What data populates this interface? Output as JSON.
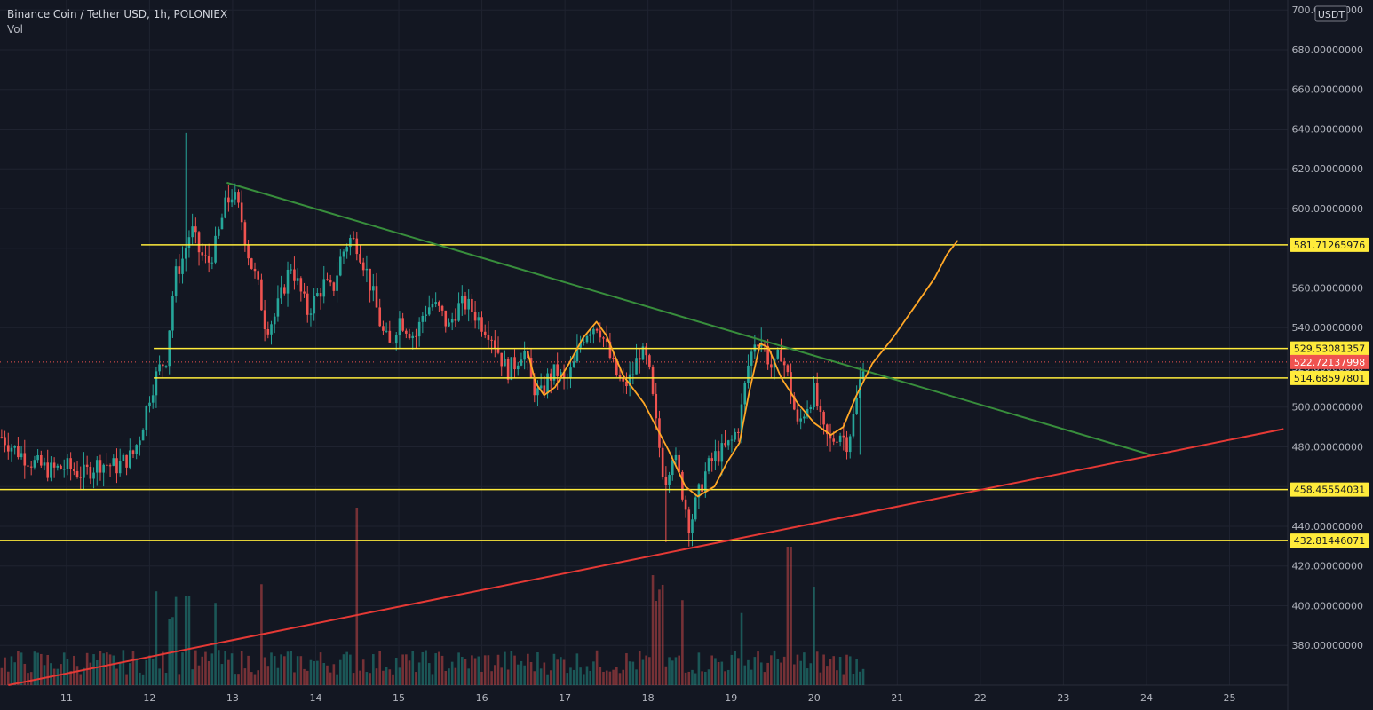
{
  "header": {
    "title": "Binance Coin / Tether USD, 1h, POLONIEX",
    "indicator": "Vol",
    "currency": "USDT"
  },
  "colors": {
    "background": "#131722",
    "grid": "#1f2330",
    "up": "#26a69a",
    "down": "#ef5350",
    "level": "#ffeb3b",
    "falling_trendline": "#388e3c",
    "rising_trendline": "#e53935",
    "projection": "#ffa726",
    "current_price": "#ef5350"
  },
  "chart_data": {
    "type": "candlestick",
    "ylim": [
      360,
      705
    ],
    "xlim": [
      10.2,
      25.7
    ],
    "y_ticks": [
      "380.00000000",
      "400.00000000",
      "420.00000000",
      "440.00000000",
      "460.00000000",
      "480.00000000",
      "500.00000000",
      "520.00000000",
      "540.00000000",
      "560.00000000",
      "580.00000000",
      "600.00000000",
      "620.00000000",
      "640.00000000",
      "660.00000000",
      "680.00000000",
      "700.00000000"
    ],
    "x_ticks": [
      "11",
      "12",
      "13",
      "14",
      "15",
      "16",
      "17",
      "18",
      "19",
      "20",
      "21",
      "22",
      "23",
      "24",
      "25"
    ],
    "grid": true,
    "horizontal_levels": [
      {
        "label": "581.71265976",
        "value": 581.71,
        "x_start": 11.9
      },
      {
        "label": "529.53081357",
        "value": 529.53,
        "x_start": 12.05
      },
      {
        "label": "514.68597801",
        "value": 514.69,
        "x_start": 12.05
      },
      {
        "label": "458.45554031",
        "value": 458.46,
        "x_start": 10.2
      },
      {
        "label": "432.81446071",
        "value": 432.81,
        "x_start": 10.2
      }
    ],
    "current_price": {
      "label": "522.72137998",
      "value": 522.72
    },
    "trendlines": [
      {
        "name": "falling",
        "points": [
          [
            12.93,
            613
          ],
          [
            24.05,
            476
          ]
        ]
      },
      {
        "name": "rising",
        "points": [
          [
            10.3,
            360
          ],
          [
            25.65,
            489
          ]
        ]
      }
    ],
    "projection_path": [
      [
        17.65,
        520
      ],
      [
        16.55,
        528
      ],
      [
        16.65,
        512
      ],
      [
        16.75,
        506
      ],
      [
        16.88,
        510
      ],
      [
        17.05,
        522
      ],
      [
        17.22,
        535
      ],
      [
        17.38,
        543
      ],
      [
        17.5,
        536
      ],
      [
        17.7,
        516
      ],
      [
        17.95,
        502
      ],
      [
        18.25,
        478
      ],
      [
        18.45,
        460
      ],
      [
        18.6,
        455
      ],
      [
        18.8,
        460
      ],
      [
        18.95,
        472
      ],
      [
        19.1,
        482
      ],
      [
        19.22,
        508
      ],
      [
        19.35,
        532
      ],
      [
        19.45,
        530
      ],
      [
        19.6,
        515
      ],
      [
        19.8,
        502
      ],
      [
        20.0,
        492
      ],
      [
        20.2,
        486
      ],
      [
        20.35,
        490
      ],
      [
        20.5,
        505
      ],
      [
        20.7,
        522
      ],
      [
        20.95,
        535
      ],
      [
        21.2,
        550
      ],
      [
        21.45,
        565
      ],
      [
        21.6,
        577
      ],
      [
        21.73,
        584
      ]
    ],
    "price_points": [
      [
        10.22,
        485
      ],
      [
        10.4,
        478
      ],
      [
        10.6,
        472
      ],
      [
        10.8,
        468
      ],
      [
        11.0,
        470
      ],
      [
        11.2,
        466
      ],
      [
        11.4,
        472
      ],
      [
        11.6,
        470
      ],
      [
        11.8,
        476
      ],
      [
        11.9,
        488
      ],
      [
        12.0,
        506
      ],
      [
        12.1,
        518
      ],
      [
        12.2,
        525
      ],
      [
        12.3,
        565
      ],
      [
        12.4,
        575
      ],
      [
        12.5,
        590
      ],
      [
        12.6,
        578
      ],
      [
        12.7,
        572
      ],
      [
        12.8,
        582
      ],
      [
        12.9,
        600
      ],
      [
        13.0,
        608
      ],
      [
        13.1,
        596
      ],
      [
        13.2,
        575
      ],
      [
        13.3,
        562
      ],
      [
        13.4,
        540
      ],
      [
        13.5,
        545
      ],
      [
        13.6,
        558
      ],
      [
        13.7,
        572
      ],
      [
        13.8,
        560
      ],
      [
        13.9,
        548
      ],
      [
        14.0,
        555
      ],
      [
        14.1,
        562
      ],
      [
        14.2,
        558
      ],
      [
        14.3,
        575
      ],
      [
        14.4,
        585
      ],
      [
        14.5,
        582
      ],
      [
        14.6,
        570
      ],
      [
        14.7,
        555
      ],
      [
        14.8,
        538
      ],
      [
        14.9,
        530
      ],
      [
        15.0,
        545
      ],
      [
        15.1,
        540
      ],
      [
        15.2,
        535
      ],
      [
        15.3,
        548
      ],
      [
        15.4,
        552
      ],
      [
        15.5,
        548
      ],
      [
        15.6,
        540
      ],
      [
        15.7,
        550
      ],
      [
        15.8,
        552
      ],
      [
        15.9,
        548
      ],
      [
        16.0,
        542
      ],
      [
        16.1,
        538
      ],
      [
        16.2,
        528
      ],
      [
        16.3,
        518
      ],
      [
        16.4,
        522
      ],
      [
        16.5,
        530
      ],
      [
        16.6,
        512
      ],
      [
        16.7,
        505
      ],
      [
        16.8,
        515
      ],
      [
        16.9,
        518
      ],
      [
        17.0,
        512
      ],
      [
        17.1,
        520
      ],
      [
        17.2,
        535
      ],
      [
        17.3,
        540
      ],
      [
        17.4,
        542
      ],
      [
        17.5,
        530
      ],
      [
        17.6,
        518
      ],
      [
        17.7,
        510
      ],
      [
        17.8,
        515
      ],
      [
        17.9,
        528
      ],
      [
        18.0,
        522
      ],
      [
        18.1,
        490
      ],
      [
        18.2,
        462
      ],
      [
        18.3,
        478
      ],
      [
        18.4,
        460
      ],
      [
        18.5,
        440
      ],
      [
        18.6,
        455
      ],
      [
        18.7,
        468
      ],
      [
        18.8,
        475
      ],
      [
        18.9,
        478
      ],
      [
        19.0,
        482
      ],
      [
        19.1,
        492
      ],
      [
        19.2,
        520
      ],
      [
        19.3,
        536
      ],
      [
        19.4,
        530
      ],
      [
        19.5,
        518
      ],
      [
        19.6,
        528
      ],
      [
        19.7,
        512
      ],
      [
        19.8,
        490
      ],
      [
        19.9,
        500
      ],
      [
        20.0,
        508
      ],
      [
        20.1,
        488
      ],
      [
        20.2,
        482
      ],
      [
        20.3,
        488
      ],
      [
        20.4,
        482
      ],
      [
        20.5,
        500
      ],
      [
        20.6,
        525
      ]
    ],
    "volume_max": 100
  }
}
